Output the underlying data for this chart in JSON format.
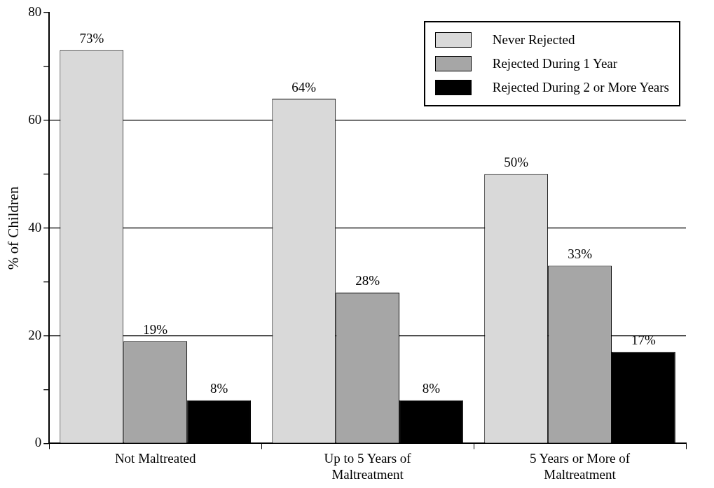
{
  "chart_data": {
    "type": "bar",
    "ylabel": "% of Children",
    "categories": [
      "Not Maltreated",
      "Up to 5 Years of Maltreatment",
      "5 Years or More of Maltreatment"
    ],
    "series": [
      {
        "name": "Never Rejected",
        "color": "#d9d9d9",
        "values": [
          73,
          64,
          50
        ],
        "value_labels": [
          "73%",
          "64%",
          "50%"
        ]
      },
      {
        "name": "Rejected During 1 Year",
        "color": "#a6a6a6",
        "values": [
          19,
          28,
          33
        ],
        "value_labels": [
          "19%",
          "28%",
          "33%"
        ]
      },
      {
        "name": "Rejected During 2 or More Years",
        "color": "#000000",
        "values": [
          8,
          8,
          17
        ],
        "value_labels": [
          "8%",
          "8%",
          "17%"
        ]
      }
    ],
    "ylim": [
      0,
      80
    ],
    "yticks": [
      0,
      {
        "value": 10,
        "label": null
      },
      20,
      {
        "value": 30,
        "label": null
      },
      40,
      {
        "value": 50,
        "label": null
      },
      60,
      {
        "value": 70,
        "label": null
      },
      80
    ],
    "grid": "y",
    "legend": "top right"
  }
}
